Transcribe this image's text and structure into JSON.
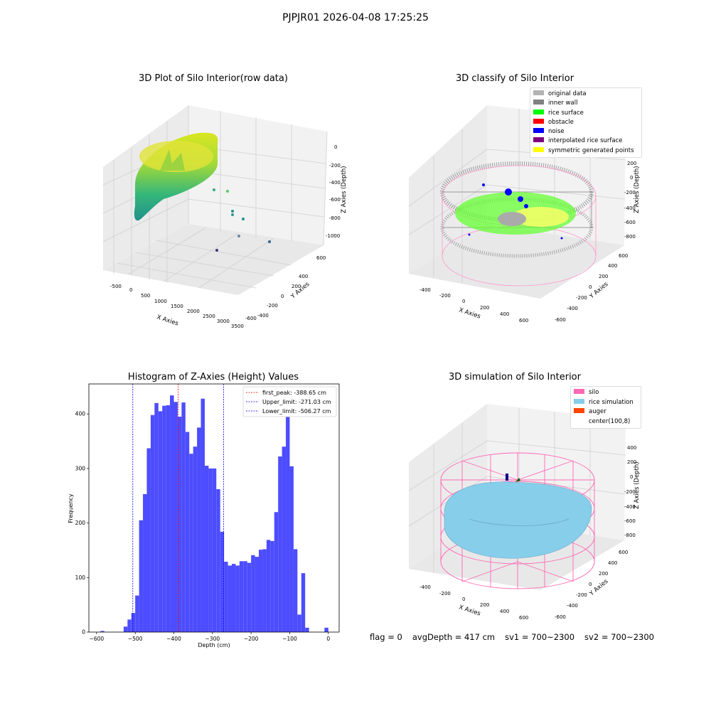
{
  "suptitle": "PJPJR01 2026-04-08 17:25:25",
  "status": {
    "flag": "flag = 0",
    "avg_depth": "avgDepth = 417 cm",
    "sv1": "sv1 = 700~2300",
    "sv2": "sv2 = 700~2300"
  },
  "panels": {
    "raw": {
      "title": "3D Plot of Silo Interior(row data)",
      "xlabel": "X Axies",
      "ylabel": "Y Axies",
      "zlabel": "Z Axies (Depth)",
      "xticks": [
        "-500",
        "0",
        "500",
        "1000",
        "1500",
        "2000",
        "2500",
        "3000",
        "3500"
      ],
      "yticks": [
        "600",
        "400",
        "200",
        "0",
        "-200",
        "-400",
        "-600"
      ],
      "zticks": [
        "0",
        "-200",
        "-400",
        "-600",
        "-800",
        "-1000"
      ]
    },
    "classify": {
      "title": "3D classify of Silo Interior",
      "xlabel": "X Axies",
      "ylabel": "Y Axies",
      "zlabel": "Z Axies (Depth)",
      "xticks": [
        "-400",
        "-200",
        "0",
        "200",
        "400",
        "600"
      ],
      "yticks": [
        "600",
        "400",
        "200",
        "0",
        "-200",
        "-400",
        "-600"
      ],
      "zticks": [
        "400",
        "200",
        "0",
        "-200",
        "-400",
        "-600",
        "-800"
      ],
      "legend": [
        {
          "label": "original data",
          "color": "#b3b3b3"
        },
        {
          "label": "inner wall",
          "color": "#808080"
        },
        {
          "label": "rice surface",
          "color": "#00ff00"
        },
        {
          "label": "obstacle",
          "color": "#ff0000"
        },
        {
          "label": "noise",
          "color": "#0000ff"
        },
        {
          "label": "interpolated rice surface",
          "color": "#800080"
        },
        {
          "label": "symmetric generated points",
          "color": "#ffff00"
        }
      ]
    },
    "simulation": {
      "title": "3D simulation of Silo Interior",
      "xlabel": "X Axies",
      "ylabel": "Y Axies",
      "zlabel": "Z Axies (Depth)",
      "xticks": [
        "-400",
        "-200",
        "0",
        "200",
        "400",
        "600"
      ],
      "yticks": [
        "600",
        "400",
        "200",
        "0",
        "-200",
        "-400",
        "-600"
      ],
      "zticks": [
        "400",
        "200",
        "0",
        "-200",
        "-400",
        "-600",
        "-800"
      ],
      "legend": [
        {
          "label": "silo",
          "color": "#ff69b4"
        },
        {
          "label": "rice simulation",
          "color": "#87ceeb"
        },
        {
          "label": "auger",
          "color": "#ff4500"
        },
        {
          "label": "center(100,8)",
          "color": "#ffffff"
        }
      ]
    }
  },
  "chart_data": {
    "type": "bar",
    "title": "Histogram of Z-Axies (Height) Values",
    "xlabel": "Depth (cm)",
    "ylabel": "Frequency",
    "xlim": [
      -620,
      28
    ],
    "ylim": [
      0,
      455
    ],
    "xticks": [
      -600,
      -500,
      -400,
      -300,
      -200,
      -100,
      0
    ],
    "yticks": [
      0,
      100,
      200,
      300,
      400
    ],
    "bar_color": "#4d4dff",
    "bins": [
      {
        "x0": -590,
        "x1": -580,
        "count": 2
      },
      {
        "x0": -530,
        "x1": -520,
        "count": 10
      },
      {
        "x0": -520,
        "x1": -510,
        "count": 23
      },
      {
        "x0": -510,
        "x1": -500,
        "count": 35
      },
      {
        "x0": -500,
        "x1": -490,
        "count": 67
      },
      {
        "x0": -490,
        "x1": -480,
        "count": 205
      },
      {
        "x0": -480,
        "x1": -470,
        "count": 253
      },
      {
        "x0": -470,
        "x1": -460,
        "count": 337
      },
      {
        "x0": -460,
        "x1": -450,
        "count": 398
      },
      {
        "x0": -450,
        "x1": -440,
        "count": 420
      },
      {
        "x0": -440,
        "x1": -430,
        "count": 405
      },
      {
        "x0": -430,
        "x1": -420,
        "count": 415
      },
      {
        "x0": -420,
        "x1": -410,
        "count": 416
      },
      {
        "x0": -410,
        "x1": -400,
        "count": 434
      },
      {
        "x0": -400,
        "x1": -390,
        "count": 422
      },
      {
        "x0": -390,
        "x1": -380,
        "count": 395
      },
      {
        "x0": -380,
        "x1": -370,
        "count": 421
      },
      {
        "x0": -370,
        "x1": -360,
        "count": 367
      },
      {
        "x0": -360,
        "x1": -350,
        "count": 327
      },
      {
        "x0": -350,
        "x1": -340,
        "count": 340
      },
      {
        "x0": -340,
        "x1": -330,
        "count": 375
      },
      {
        "x0": -330,
        "x1": -320,
        "count": 428
      },
      {
        "x0": -320,
        "x1": -310,
        "count": 305
      },
      {
        "x0": -310,
        "x1": -300,
        "count": 300
      },
      {
        "x0": -300,
        "x1": -290,
        "count": 300
      },
      {
        "x0": -290,
        "x1": -280,
        "count": 262
      },
      {
        "x0": -280,
        "x1": -270,
        "count": 184
      },
      {
        "x0": -270,
        "x1": -260,
        "count": 129
      },
      {
        "x0": -260,
        "x1": -250,
        "count": 122
      },
      {
        "x0": -250,
        "x1": -240,
        "count": 125
      },
      {
        "x0": -240,
        "x1": -230,
        "count": 122
      },
      {
        "x0": -230,
        "x1": -220,
        "count": 130
      },
      {
        "x0": -220,
        "x1": -210,
        "count": 130
      },
      {
        "x0": -210,
        "x1": -200,
        "count": 127
      },
      {
        "x0": -200,
        "x1": -190,
        "count": 141
      },
      {
        "x0": -190,
        "x1": -180,
        "count": 138
      },
      {
        "x0": -180,
        "x1": -170,
        "count": 151
      },
      {
        "x0": -170,
        "x1": -160,
        "count": 152
      },
      {
        "x0": -160,
        "x1": -150,
        "count": 169
      },
      {
        "x0": -150,
        "x1": -140,
        "count": 167
      },
      {
        "x0": -140,
        "x1": -130,
        "count": 220
      },
      {
        "x0": -130,
        "x1": -120,
        "count": 322
      },
      {
        "x0": -120,
        "x1": -110,
        "count": 340
      },
      {
        "x0": -110,
        "x1": -100,
        "count": 410
      },
      {
        "x0": -100,
        "x1": -90,
        "count": 304
      },
      {
        "x0": -90,
        "x1": -80,
        "count": 152
      },
      {
        "x0": -80,
        "x1": -70,
        "count": 32
      },
      {
        "x0": -70,
        "x1": -60,
        "count": 108
      },
      {
        "x0": -60,
        "x1": -50,
        "count": 8
      },
      {
        "x0": -10,
        "x1": 0,
        "count": 8
      }
    ],
    "vlines": [
      {
        "x": -388.65,
        "color": "#ff0000",
        "label": "first_peak: -388.65 cm"
      },
      {
        "x": -271.03,
        "color": "#0000ff",
        "label": "Upper_limit: -271.03 cm"
      },
      {
        "x": -506.27,
        "color": "#0000ff",
        "label": "Lower_limit: -506.27 cm"
      }
    ],
    "legend_position": "upper right"
  }
}
